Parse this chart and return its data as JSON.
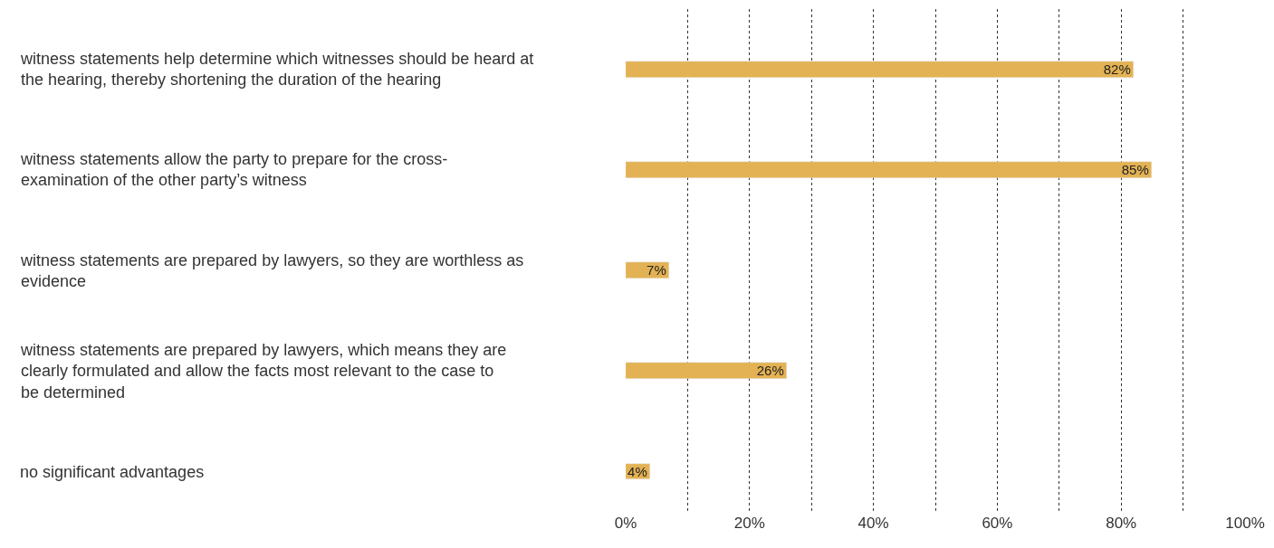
{
  "chart_data": {
    "type": "bar",
    "orientation": "horizontal",
    "categories": [
      "witness statements help determine which witnesses should be heard at the hearing, thereby shortening the duration of the hearing",
      "witness statements allow the party to prepare for the cross-examination of the other party’s witness",
      "witness statements are prepared by lawyers, so they are worthless as evidence",
      "witness statements are prepared by lawyers, which means they are clearly formulated and allow the facts most relevant to the case to be determined",
      "no significant advantages"
    ],
    "values": [
      82,
      85,
      7,
      26,
      4
    ],
    "value_labels": [
      "82%",
      "85%",
      "7%",
      "26%",
      "4%"
    ],
    "color": "#e3b254",
    "xlim": [
      0,
      100
    ],
    "xticks": [
      {
        "value": 0,
        "label": "0%"
      },
      {
        "value": 10,
        "label": null
      },
      {
        "value": 20,
        "label": "20%"
      },
      {
        "value": 30,
        "label": null
      },
      {
        "value": 40,
        "label": "40%"
      },
      {
        "value": 50,
        "label": null
      },
      {
        "value": 60,
        "label": "60%"
      },
      {
        "value": 70,
        "label": null
      },
      {
        "value": 80,
        "label": "80%"
      },
      {
        "value": 90,
        "label": null
      },
      {
        "value": 100,
        "label": "100%"
      }
    ],
    "grid": "x",
    "legend": false
  }
}
